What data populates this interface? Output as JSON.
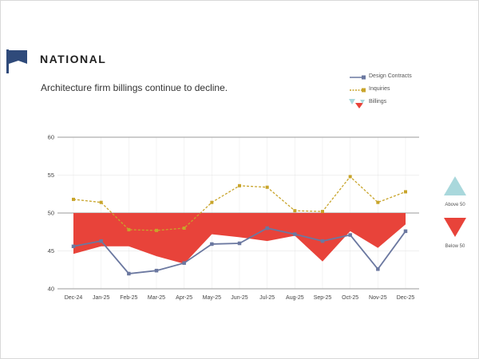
{
  "header": {
    "section_title": "NATIONAL",
    "subtitle": "Architecture firm billings continue to decline.",
    "flag_icon": "flag-icon"
  },
  "legend": {
    "items": [
      {
        "label": "Design Contracts",
        "color": "#6b78a0",
        "icon": "line-square-marker-icon"
      },
      {
        "label": "Inquiries",
        "color": "#c8a42a",
        "icon": "dashed-line-square-marker-icon"
      },
      {
        "label": "Billings",
        "color": "#e8433a",
        "icon": "billings-triangles-icon"
      }
    ]
  },
  "side_legend": {
    "above": {
      "label": "Above 50",
      "color": "#a9d8dc",
      "icon": "triangle-up-icon"
    },
    "below": {
      "label": "Below 50",
      "color": "#e8433a",
      "icon": "triangle-down-icon"
    }
  },
  "chart_data": {
    "type": "line",
    "categories": [
      "Dec-24",
      "Jan-25",
      "Feb-25",
      "Mar-25",
      "Apr-25",
      "May-25",
      "Jun-25",
      "Jul-25",
      "Aug-25",
      "Sep-25",
      "Oct-25",
      "Nov-25",
      "Dec-25"
    ],
    "series": [
      {
        "name": "Design Contracts",
        "values": [
          45.6,
          46.3,
          42.0,
          42.4,
          43.4,
          45.9,
          46.0,
          48.0,
          47.2,
          46.3,
          47.1,
          42.6,
          47.6
        ],
        "color": "#6b78a0",
        "style": "solid"
      },
      {
        "name": "Inquiries",
        "values": [
          51.8,
          51.4,
          47.8,
          47.7,
          48.0,
          51.4,
          53.6,
          53.4,
          50.3,
          50.2,
          54.8,
          51.4,
          52.8
        ],
        "color": "#c8a42a",
        "style": "dashed"
      },
      {
        "name": "Billings",
        "values": [
          44.6,
          45.6,
          45.6,
          44.3,
          43.3,
          47.2,
          46.8,
          46.3,
          47.0,
          43.6,
          47.6,
          45.4,
          48.5
        ],
        "color": "#e8433a",
        "style": "area-below-50"
      }
    ],
    "baseline": 50,
    "ylim": [
      40,
      60
    ],
    "yticks": [
      40,
      45,
      50,
      55,
      60
    ],
    "grid": true,
    "legend_position": "top-right"
  }
}
